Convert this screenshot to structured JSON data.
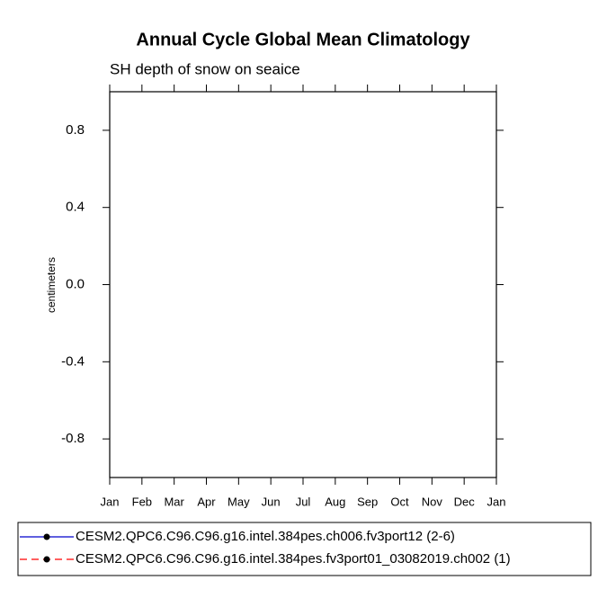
{
  "chart_data": {
    "type": "line",
    "title": "Annual Cycle Global Mean Climatology",
    "subtitle": "SH depth of snow on seaice",
    "y_label": "centimeters",
    "categories": [
      "Jan",
      "Feb",
      "Mar",
      "Apr",
      "May",
      "Jun",
      "Jul",
      "Aug",
      "Sep",
      "Oct",
      "Nov",
      "Dec",
      "Jan"
    ],
    "series": [
      {
        "name": "CESM2.QPC6.C96.C96.g16.intel.384pes.ch006.fv3port12 (2-6)",
        "color": "#0000cc",
        "dash": "solid",
        "values": [
          null,
          null,
          null,
          null,
          null,
          null,
          null,
          null,
          null,
          null,
          null,
          null,
          null
        ]
      },
      {
        "name": "CESM2.QPC6.C96.C96.g16.intel.384pes.fv3port01_03082019.ch002 (1)",
        "color": "#ff0000",
        "dash": "dashed",
        "values": [
          null,
          null,
          null,
          null,
          null,
          null,
          null,
          null,
          null,
          null,
          null,
          null,
          null
        ]
      }
    ],
    "ylim": [
      -1,
      1
    ],
    "yticks": [
      -0.8,
      -0.4,
      {
        "value": 0,
        "label": "0.0"
      },
      0.4,
      0.8
    ],
    "grid": false
  }
}
